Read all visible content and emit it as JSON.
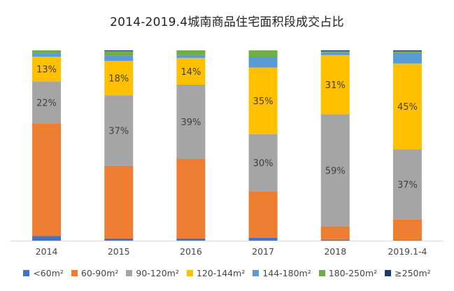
{
  "chart_data": {
    "type": "bar",
    "stacked": true,
    "title": "2014-2019.4城南商品住宅面积段成交占比",
    "categories": [
      "2014",
      "2015",
      "2016",
      "2017",
      "2018",
      "2019.1-4"
    ],
    "ylim": [
      0,
      100
    ],
    "grid": false,
    "legend_position": "bottom",
    "series": [
      {
        "name": "<60m²",
        "color": "#4472C4",
        "values": [
          2.5,
          1.2,
          1.2,
          1.5,
          0.5,
          0.3
        ],
        "labels": [
          "",
          "",
          "",
          "",
          "",
          ""
        ]
      },
      {
        "name": "60-90m²",
        "color": "#ED7D31",
        "values": [
          59.2,
          38.2,
          41.8,
          24.5,
          7.0,
          10.8
        ],
        "labels": [
          "",
          "",
          "",
          "",
          "",
          ""
        ]
      },
      {
        "name": "90-120m²",
        "color": "#A5A5A5",
        "values": [
          22,
          37,
          39,
          30,
          59,
          37
        ],
        "labels": [
          "22%",
          "37%",
          "39%",
          "30%",
          "59%",
          "37%"
        ]
      },
      {
        "name": "120-144m²",
        "color": "#FFC000",
        "values": [
          13,
          18,
          14,
          35,
          31,
          45
        ],
        "labels": [
          "13%",
          "18%",
          "14%",
          "35%",
          "31%",
          "45%"
        ]
      },
      {
        "name": "144-180m²",
        "color": "#5B9BD5",
        "values": [
          1.8,
          2.7,
          1.5,
          5.5,
          1.5,
          5.6
        ],
        "labels": [
          "",
          "",
          "",
          "",
          "",
          ""
        ]
      },
      {
        "name": "180-250m²",
        "color": "#70AD47",
        "values": [
          1.5,
          2.5,
          2.5,
          3.5,
          0.5,
          0.8
        ],
        "labels": [
          "",
          "",
          "",
          "",
          "",
          ""
        ]
      },
      {
        "name": "≥250m²",
        "color": "#203864",
        "values": [
          0,
          0.4,
          0,
          0,
          0.5,
          0.5
        ],
        "labels": [
          "",
          "",
          "",
          "",
          "",
          ""
        ]
      }
    ]
  }
}
